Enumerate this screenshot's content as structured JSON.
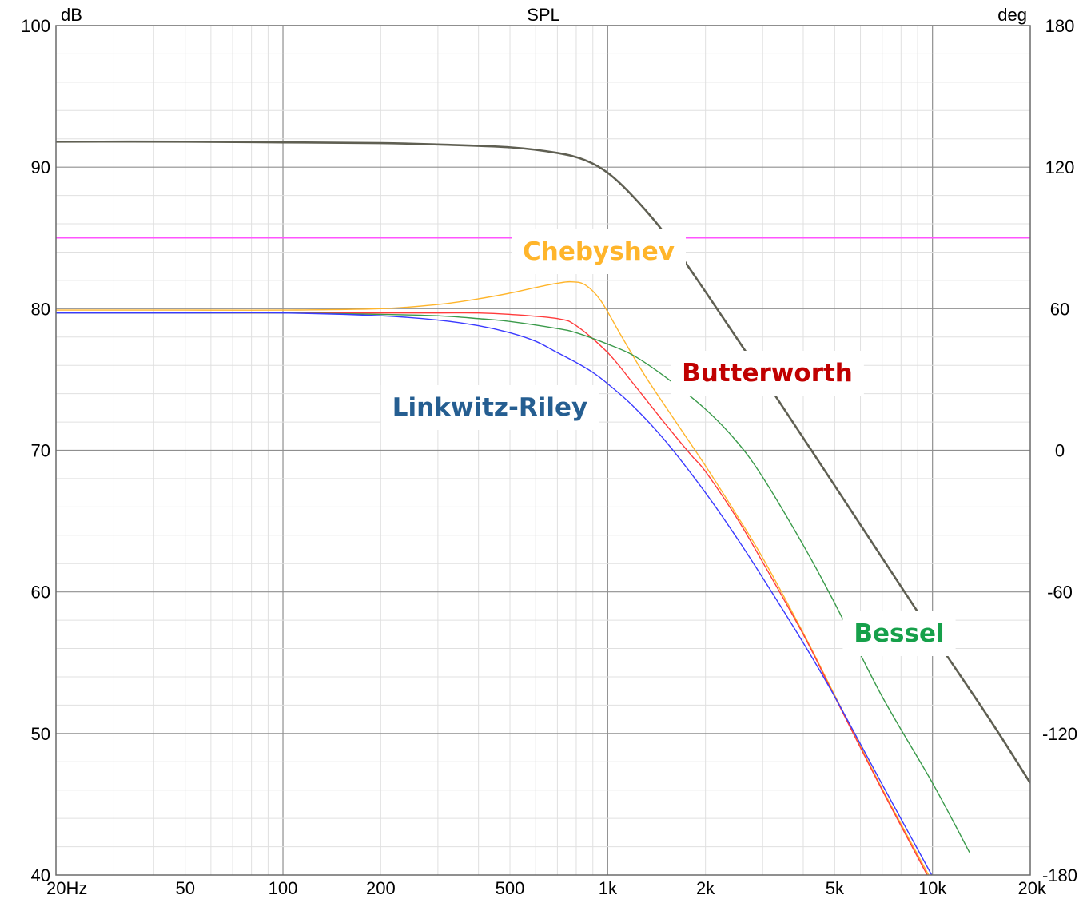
{
  "chart_data": {
    "type": "line",
    "title": "SPL",
    "y_unit_left": "dB",
    "y_unit_right": "deg",
    "x_scale": "log",
    "xlim": [
      20,
      20000
    ],
    "ylim": [
      40,
      100
    ],
    "y2lim": [
      -180,
      180
    ],
    "grid": true,
    "x_ticks": [
      {
        "value": 20,
        "label": "20Hz"
      },
      {
        "value": 50,
        "label": "50"
      },
      {
        "value": 100,
        "label": "100"
      },
      {
        "value": 200,
        "label": "200"
      },
      {
        "value": 500,
        "label": "500"
      },
      {
        "value": 1000,
        "label": "1k"
      },
      {
        "value": 2000,
        "label": "2k"
      },
      {
        "value": 5000,
        "label": "5k"
      },
      {
        "value": 10000,
        "label": "10k"
      },
      {
        "value": 20000,
        "label": "20k"
      }
    ],
    "y_ticks": [
      {
        "value": 100,
        "label": "100"
      },
      {
        "value": 90,
        "label": "90"
      },
      {
        "value": 80,
        "label": "80"
      },
      {
        "value": 70,
        "label": "70"
      },
      {
        "value": 60,
        "label": "60"
      },
      {
        "value": 50,
        "label": "50"
      },
      {
        "value": 40,
        "label": "40"
      }
    ],
    "y2_ticks": [
      {
        "value": 180,
        "label": "180"
      },
      {
        "value": 120,
        "label": "120"
      },
      {
        "value": 60,
        "label": "60"
      },
      {
        "value": 0,
        "label": "0"
      },
      {
        "value": -60,
        "label": "-60"
      },
      {
        "value": -120,
        "label": "-120"
      },
      {
        "value": -180,
        "label": "-180"
      }
    ],
    "reference_line": {
      "y": 85,
      "color": "#ff55ff"
    },
    "series": [
      {
        "color": "#5f5f52",
        "width": 2.6,
        "x": [
          20,
          50,
          100,
          200,
          300,
          500,
          700,
          850,
          1000,
          1200,
          1500,
          2000,
          3000,
          5000,
          7000,
          10000,
          15000,
          20000
        ],
        "y": [
          91.8,
          91.8,
          91.75,
          91.7,
          91.6,
          91.4,
          91.0,
          90.5,
          89.6,
          87.9,
          85.3,
          81.2,
          75.2,
          67.5,
          62.4,
          57.0,
          51.0,
          46.5
        ]
      },
      {
        "name": "Chebyshev",
        "color": "#ffb52b",
        "width": 1.4,
        "x": [
          20,
          50,
          100,
          200,
          300,
          400,
          500,
          600,
          700,
          770,
          850,
          950,
          1100,
          1300,
          1600,
          2000,
          2500,
          3000,
          4000,
          5000,
          7000,
          10000
        ],
        "y": [
          79.9,
          79.9,
          79.9,
          80.0,
          80.3,
          80.7,
          81.1,
          81.5,
          81.8,
          81.9,
          81.7,
          80.6,
          78.1,
          75.3,
          72.2,
          68.9,
          65.4,
          62.4,
          57.1,
          52.7,
          46.1,
          39.5
        ]
      },
      {
        "name": "Butterworth",
        "color": "#ff3b3b",
        "width": 1.4,
        "x": [
          20,
          50,
          100,
          200,
          300,
          400,
          500,
          700,
          800,
          1000,
          1200,
          1500,
          1800,
          2000,
          2500,
          3000,
          4000,
          5000,
          7000,
          10000
        ],
        "y": [
          79.7,
          79.7,
          79.7,
          79.7,
          79.7,
          79.7,
          79.6,
          79.3,
          78.8,
          76.9,
          74.7,
          71.9,
          69.7,
          68.5,
          65.2,
          62.1,
          57.0,
          52.6,
          46.0,
          39.3
        ]
      },
      {
        "name": "Bessel",
        "color": "#3a9a4a",
        "width": 1.4,
        "x": [
          20,
          50,
          100,
          200,
          300,
          400,
          500,
          700,
          800,
          1000,
          1200,
          1500,
          2000,
          2500,
          3000,
          4000,
          5000,
          7000,
          10000,
          13000
        ],
        "y": [
          79.7,
          79.7,
          79.7,
          79.6,
          79.5,
          79.3,
          79.1,
          78.6,
          78.3,
          77.5,
          76.7,
          75.2,
          72.9,
          70.6,
          68.1,
          63.3,
          59.2,
          52.6,
          46.5,
          41.6
        ]
      },
      {
        "name": "Linkwitz-Riley",
        "color": "#3a3aff",
        "width": 1.4,
        "x": [
          20,
          50,
          100,
          200,
          300,
          400,
          500,
          600,
          700,
          800,
          900,
          1000,
          1200,
          1500,
          2000,
          2500,
          3000,
          4000,
          5000,
          7000,
          10000
        ],
        "y": [
          79.7,
          79.7,
          79.7,
          79.5,
          79.2,
          78.8,
          78.3,
          77.7,
          76.9,
          76.2,
          75.5,
          74.7,
          73.1,
          70.7,
          67.0,
          63.8,
          61.0,
          56.4,
          52.6,
          46.4,
          39.9
        ]
      }
    ],
    "annotations": [
      {
        "text": "Chebyshev",
        "color": "#ffb52b"
      },
      {
        "text": "Butterworth",
        "color": "#c00000"
      },
      {
        "text": "Linkwitz-Riley",
        "color": "#255e91"
      },
      {
        "text": "Bessel",
        "color": "#16a04a"
      }
    ]
  }
}
